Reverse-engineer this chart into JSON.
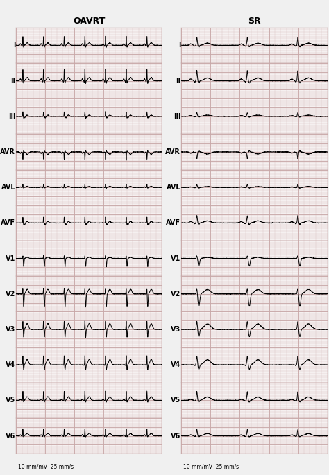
{
  "title_left": "OAVRT",
  "title_right": "SR",
  "leads": [
    "I",
    "II",
    "III",
    "AVR",
    "AVL",
    "AVF",
    "V1",
    "V2",
    "V3",
    "V4",
    "V5",
    "V6"
  ],
  "calibration_text": "10 mm/mV  25 mm/s",
  "fig_width": 4.74,
  "fig_height": 6.85,
  "bg_color": "#f0f0f0",
  "paper_color": "#f5f0f0",
  "grid_dot_color": "#c8a8a8",
  "ecg_color": "#000000",
  "text_color": "#000000",
  "label_fontsize": 7.0,
  "title_fontsize": 9,
  "calib_fontsize": 5.5,
  "line_width": 0.7
}
